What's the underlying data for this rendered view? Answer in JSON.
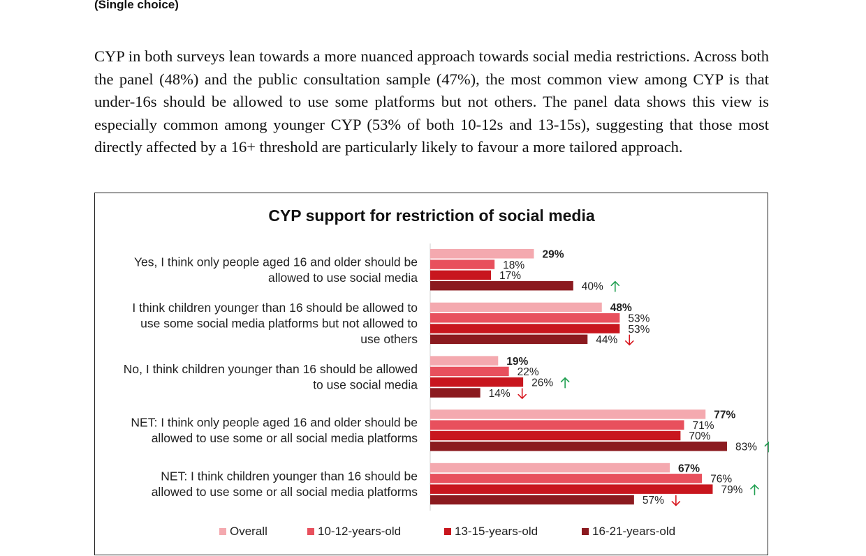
{
  "header": {
    "note": "(Single choice)"
  },
  "body_text": "CYP in both surveys lean towards a more nuanced approach towards social media restrictions. Across both the panel (48%) and the public consultation sample (47%), the most common view among CYP is that under-16s should be allowed to use some platforms but not others. The panel data shows this view is especially common among younger CYP (53% of both 10-12s and 13-15s), suggesting that those most directly affected by a 16+ threshold are particularly likely to favour a more tailored approach.",
  "chart_data": {
    "type": "bar",
    "orientation": "horizontal",
    "title": "CYP support for restriction of social media",
    "categories": [
      [
        "Yes, I think only people aged 16 and older should be",
        "allowed to use social media"
      ],
      [
        "I think children younger than 16 should be allowed to",
        "use some social media platforms but not allowed to",
        "use others"
      ],
      [
        "No, I think children younger than 16 should be allowed",
        "to use social media"
      ],
      [
        "NET: I think only people aged 16 and older should be",
        "allowed to use some or all social media platforms"
      ],
      [
        "NET: I think children younger than 16 should be",
        "allowed to use some or all social media platforms"
      ]
    ],
    "series": [
      {
        "name": "Overall",
        "color": "#f4a9af",
        "values": [
          29,
          48,
          19,
          77,
          67
        ],
        "bold": true
      },
      {
        "name": "10-12-years-old",
        "color": "#e8505d",
        "values": [
          18,
          53,
          22,
          71,
          76
        ],
        "bold": false
      },
      {
        "name": "13-15-years-old",
        "color": "#c8161e",
        "values": [
          17,
          53,
          26,
          70,
          79
        ],
        "bold": false
      },
      {
        "name": "16-21-years-old",
        "color": "#8b1a1f",
        "values": [
          40,
          44,
          14,
          83,
          57
        ],
        "bold": false
      }
    ],
    "value_format": "%",
    "significance": [
      [
        null,
        null,
        null,
        "up"
      ],
      [
        null,
        null,
        null,
        "down"
      ],
      [
        null,
        null,
        "up",
        "down"
      ],
      [
        null,
        null,
        null,
        "up"
      ],
      [
        null,
        null,
        "up",
        "down"
      ]
    ],
    "arrow_colors": {
      "up": "#22a052",
      "down": "#d7161e"
    },
    "xlim": [
      0,
      100
    ],
    "grid": false,
    "legend": "bottom"
  }
}
